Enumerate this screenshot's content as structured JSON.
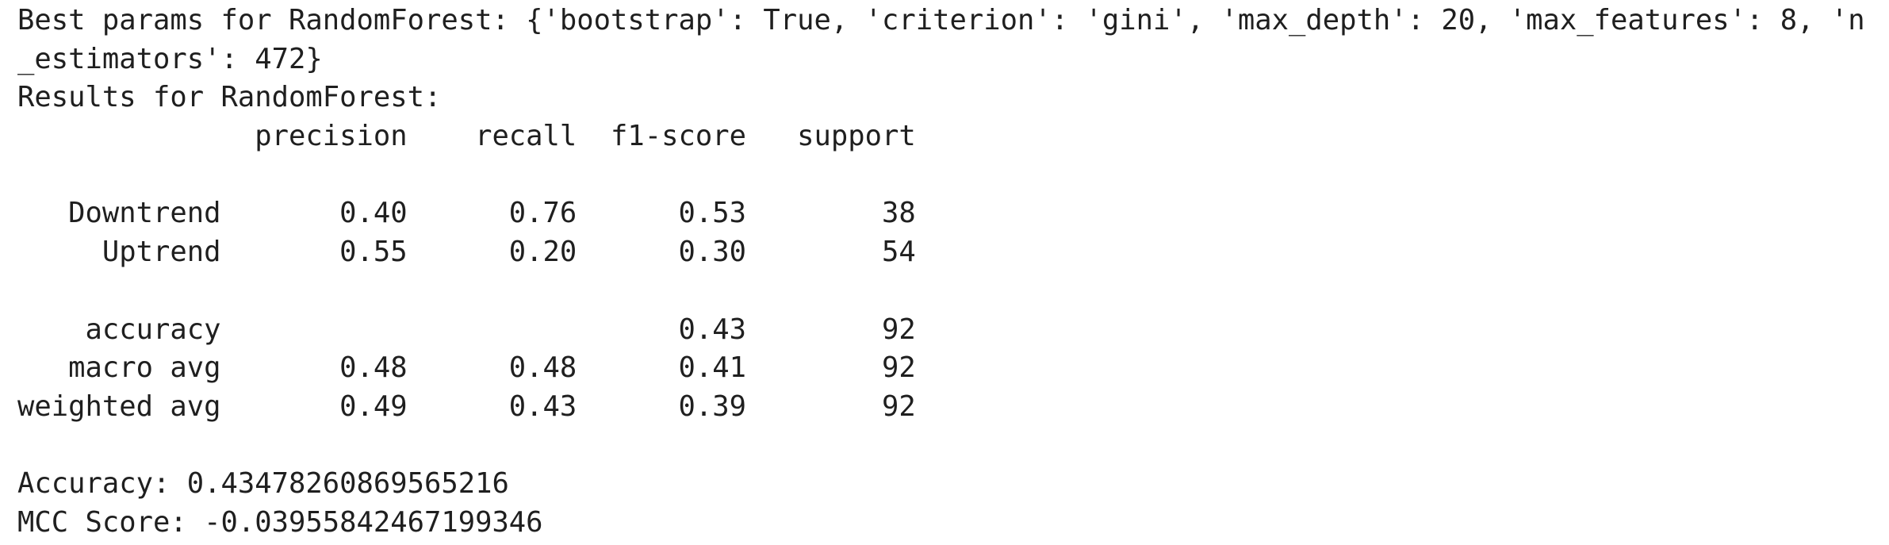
{
  "output": {
    "lines": [
      "Best params for RandomForest: {'bootstrap': True, 'criterion': 'gini', 'max_depth': 20, 'max_features': 8, 'n",
      "_estimators': 472}",
      "Results for RandomForest:",
      "              precision    recall  f1-score   support",
      "",
      "   Downtrend       0.40      0.76      0.53        38",
      "     Uptrend       0.55      0.20      0.30        54",
      "",
      "    accuracy                           0.43        92",
      "   macro avg       0.48      0.48      0.41        92",
      "weighted avg       0.49      0.43      0.39        92",
      "",
      "Accuracy: 0.43478260869565216",
      "MCC Score: -0.03955842467199346"
    ]
  }
}
